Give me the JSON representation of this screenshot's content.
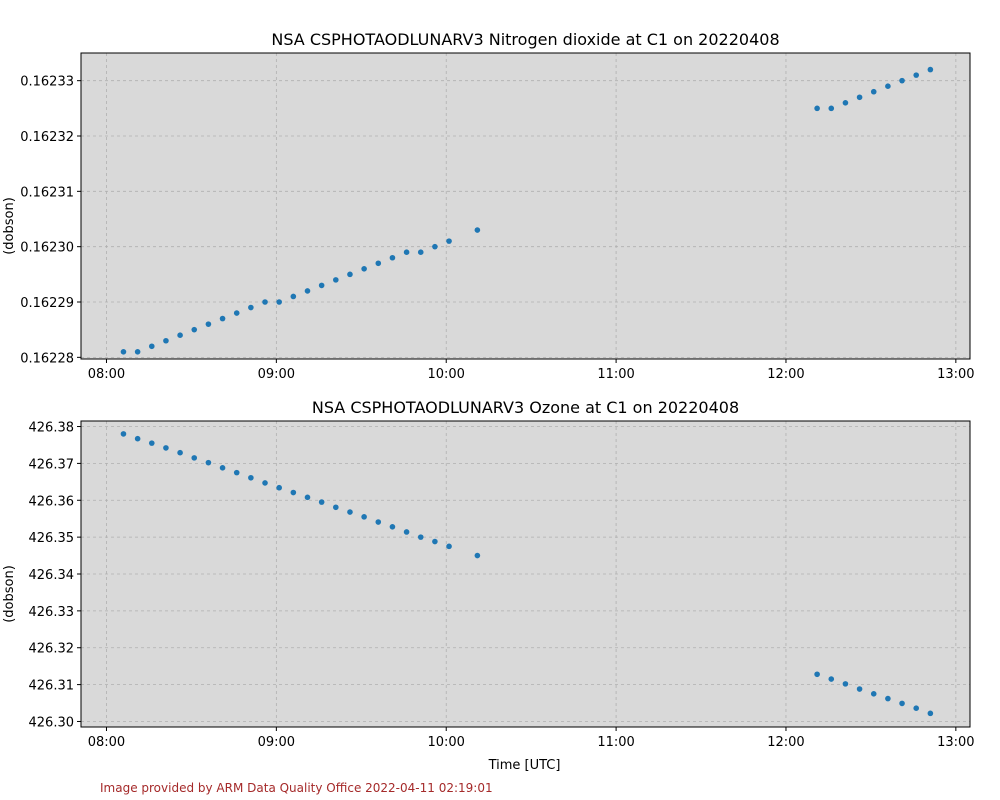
{
  "chart_data": [
    {
      "type": "scatter",
      "title": "NSA CSPHOTAODLUNARV3 Nitrogen dioxide at C1 on 20220408",
      "xlabel": "",
      "ylabel": "(dobson)",
      "ylim": [
        0.1622797,
        0.162335
      ],
      "yticks": [
        0.16228,
        0.16229,
        0.1623,
        0.16231,
        0.16232,
        0.16233
      ],
      "ytick_labels": [
        "0.16228",
        "0.16229",
        "0.16230",
        "0.16231",
        "0.16232",
        "0.16233"
      ],
      "xlim": [
        "07:51",
        "13:05"
      ],
      "xticks": [
        "08:00",
        "09:00",
        "10:00",
        "11:00",
        "12:00",
        "13:00"
      ],
      "grid": true,
      "color": "#1f77b4",
      "series": [
        {
          "x": [
            "08:06",
            "08:11",
            "08:16",
            "08:21",
            "08:26",
            "08:31",
            "08:36",
            "08:41",
            "08:46",
            "08:51",
            "08:56",
            "09:01",
            "09:06",
            "09:11",
            "09:16",
            "09:21",
            "09:26",
            "09:31",
            "09:36",
            "09:41",
            "09:46",
            "09:51",
            "09:56",
            "10:01",
            "10:11",
            "12:11",
            "12:16",
            "12:21",
            "12:26",
            "12:31",
            "12:36",
            "12:41",
            "12:46",
            "12:51"
          ],
          "y": [
            0.162281,
            0.162281,
            0.162282,
            0.162283,
            0.162284,
            0.162285,
            0.162286,
            0.162287,
            0.162288,
            0.162289,
            0.16229,
            0.16229,
            0.162291,
            0.162292,
            0.162293,
            0.162294,
            0.162295,
            0.162296,
            0.162297,
            0.162298,
            0.162299,
            0.162299,
            0.1623,
            0.162301,
            0.162303,
            0.162325,
            0.162325,
            0.162326,
            0.162327,
            0.162328,
            0.162329,
            0.16233,
            0.162331,
            0.162332
          ]
        }
      ]
    },
    {
      "type": "scatter",
      "title": "NSA CSPHOTAODLUNARV3 Ozone at C1 on 20220408",
      "xlabel": "Time [UTC]",
      "ylabel": "(dobson)",
      "ylim": [
        426.2985,
        426.3815
      ],
      "yticks": [
        426.3,
        426.31,
        426.32,
        426.33,
        426.34,
        426.35,
        426.36,
        426.37,
        426.38
      ],
      "ytick_labels": [
        "426.30",
        "426.31",
        "426.32",
        "426.33",
        "426.34",
        "426.35",
        "426.36",
        "426.37",
        "426.38"
      ],
      "xlim": [
        "07:51",
        "13:05"
      ],
      "xticks": [
        "08:00",
        "09:00",
        "10:00",
        "11:00",
        "12:00",
        "13:00"
      ],
      "grid": true,
      "color": "#1f77b4",
      "series": [
        {
          "x": [
            "08:06",
            "08:11",
            "08:16",
            "08:21",
            "08:26",
            "08:31",
            "08:36",
            "08:41",
            "08:46",
            "08:51",
            "08:56",
            "09:01",
            "09:06",
            "09:11",
            "09:16",
            "09:21",
            "09:26",
            "09:31",
            "09:36",
            "09:41",
            "09:46",
            "09:51",
            "09:56",
            "10:01",
            "10:11",
            "12:11",
            "12:16",
            "12:21",
            "12:26",
            "12:31",
            "12:36",
            "12:41",
            "12:46",
            "12:51"
          ],
          "y": [
            426.378,
            426.3767,
            426.3755,
            426.3742,
            426.3729,
            426.3715,
            426.3702,
            426.3688,
            426.3675,
            426.3661,
            426.3647,
            426.3634,
            426.3621,
            426.3608,
            426.3595,
            426.3581,
            426.3568,
            426.3555,
            426.3541,
            426.3528,
            426.3514,
            426.35,
            426.3488,
            426.3475,
            426.345,
            426.3128,
            426.3115,
            426.3102,
            426.3088,
            426.3075,
            426.3062,
            426.3049,
            426.3036,
            426.3022
          ]
        }
      ]
    }
  ],
  "footer": {
    "credit": "Image provided by ARM Data Quality Office 2022-04-11 02:19:01"
  }
}
